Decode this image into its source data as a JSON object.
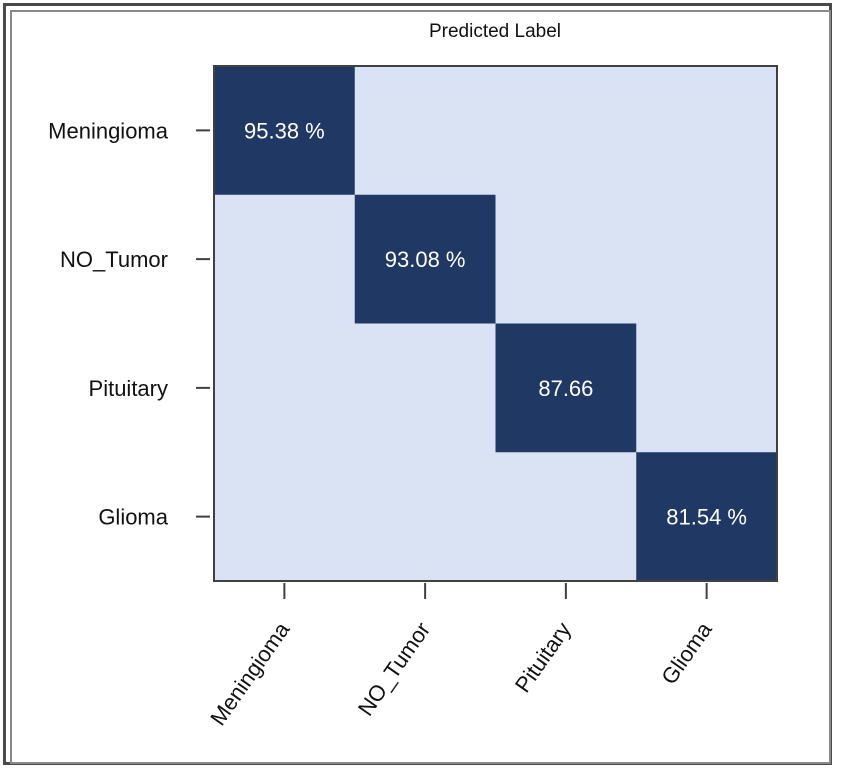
{
  "chart_data": {
    "type": "heatmap",
    "title": "Predicted Label",
    "rows": [
      "Meningioma",
      "NO_Tumor",
      "Pituitary",
      "Glioma"
    ],
    "columns": [
      "Meningioma",
      "NO_Tumor",
      "Pituitary",
      "Glioma"
    ],
    "cells": [
      {
        "row": 0,
        "col": 0,
        "label": "95.38 %",
        "value": 95.38
      },
      {
        "row": 1,
        "col": 1,
        "label": "93.08 %",
        "value": 93.08
      },
      {
        "row": 2,
        "col": 2,
        "label": "87.66",
        "value": 87.66
      },
      {
        "row": 3,
        "col": 3,
        "label": "81.54 %",
        "value": 81.54
      }
    ],
    "colors": {
      "background": "#dae3f3",
      "highlight": "#203864",
      "highlight_text": "#ffffff",
      "axis": "#404040"
    }
  }
}
